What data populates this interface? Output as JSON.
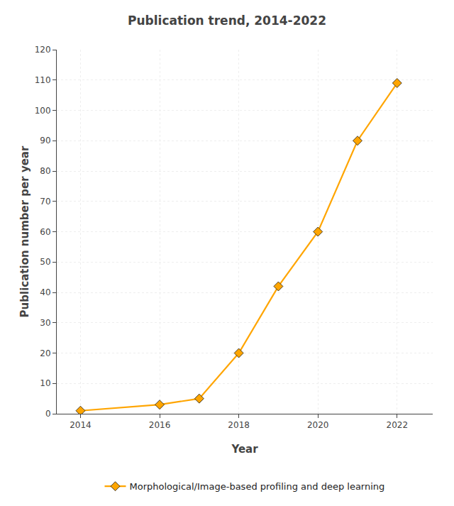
{
  "chart_data": {
    "type": "line",
    "title": "Publication trend, 2014-2022",
    "xlabel": "Year",
    "ylabel": "Publication number per year",
    "x": [
      2014,
      2016,
      2017,
      2018,
      2019,
      2020,
      2021,
      2022
    ],
    "series": [
      {
        "name": "Morphological/Image-based profiling and deep learning",
        "color": "#FFA500",
        "values": [
          1,
          3,
          5,
          20,
          42,
          60,
          90,
          109
        ]
      }
    ],
    "xlim": [
      2013.4,
      2022.9
    ],
    "xticks": [
      2014,
      2016,
      2018,
      2020,
      2022
    ],
    "ylim": [
      0,
      120
    ],
    "yticks": [
      0,
      10,
      20,
      30,
      40,
      50,
      60,
      70,
      80,
      90,
      100,
      110,
      120
    ],
    "grid": true,
    "legend": "bottom",
    "marker": "diamond",
    "line_style": "solid"
  }
}
